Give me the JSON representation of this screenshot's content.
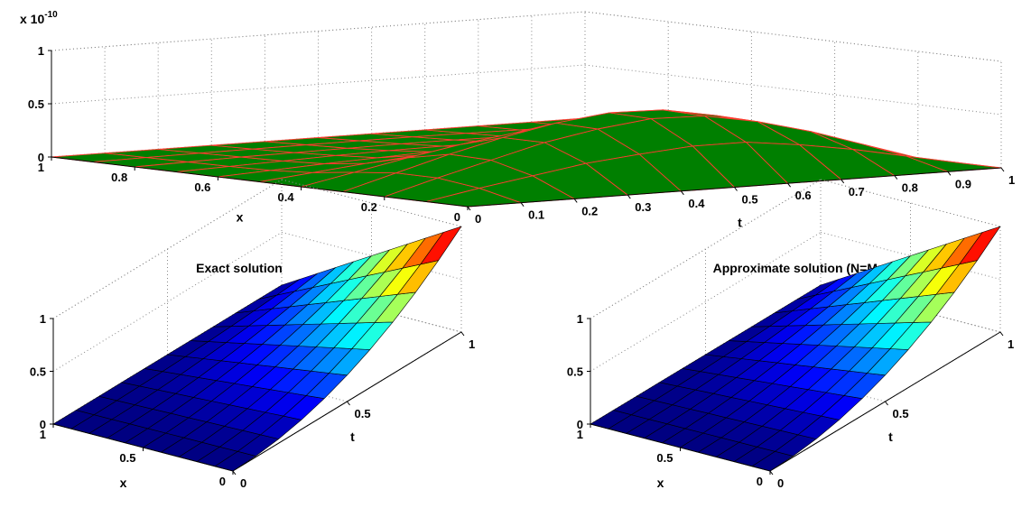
{
  "chart_data": [
    {
      "id": "error",
      "type": "surface",
      "title": "",
      "xlabel": "x",
      "ylabel": "t",
      "zlabel": "",
      "z_exponent_label": "x 10",
      "z_exponent": "-10",
      "z_scale": 1e-10,
      "xlim": [
        0,
        1
      ],
      "ylim": [
        0,
        1
      ],
      "zlim": [
        0,
        1
      ],
      "x_ticks": [
        0,
        0.2,
        0.4,
        0.6,
        0.8,
        1
      ],
      "x_tick_labels": [
        "0",
        "0.2",
        "0.4",
        "0.6",
        "0.8",
        "1"
      ],
      "y_ticks": [
        0,
        0.1,
        0.2,
        0.3,
        0.4,
        0.5,
        0.6,
        0.7,
        0.8,
        0.9,
        1
      ],
      "y_tick_labels": [
        "0",
        "0.1",
        "0.2",
        "0.3",
        "0.4",
        "0.5",
        "0.6",
        "0.7",
        "0.8",
        "0.9",
        "1"
      ],
      "z_ticks": [
        0,
        0.5,
        1
      ],
      "z_tick_labels": [
        "0",
        "0.5",
        "1"
      ],
      "face_color": "#007f00",
      "edge_color": "#ff3b30",
      "colormap": null,
      "grid_x": [
        0,
        0.1,
        0.2,
        0.3,
        0.4,
        0.5,
        0.6,
        0.7,
        0.8,
        0.9,
        1
      ],
      "grid_t": [
        0,
        0.1,
        0.2,
        0.3,
        0.4,
        0.5,
        0.6,
        0.7,
        0.8,
        0.9,
        1
      ],
      "z": [
        [
          0,
          0,
          0,
          0,
          0,
          0,
          0,
          0,
          0,
          0,
          0
        ],
        [
          0,
          0.09,
          0.17,
          0.25,
          0.3,
          0.34,
          0.34,
          0.28,
          0.2,
          0.1,
          0
        ],
        [
          0,
          0.14,
          0.27,
          0.4,
          0.49,
          0.55,
          0.54,
          0.45,
          0.32,
          0.16,
          0
        ],
        [
          0,
          0.14,
          0.28,
          0.4,
          0.5,
          0.56,
          0.55,
          0.46,
          0.33,
          0.16,
          0
        ],
        [
          0,
          0.1,
          0.2,
          0.29,
          0.36,
          0.4,
          0.39,
          0.33,
          0.24,
          0.12,
          0
        ],
        [
          0,
          0.05,
          0.1,
          0.14,
          0.17,
          0.19,
          0.19,
          0.16,
          0.12,
          0.06,
          0
        ],
        [
          0,
          0.025,
          0.05,
          0.07,
          0.09,
          0.1,
          0.1,
          0.08,
          0.06,
          0.03,
          0
        ],
        [
          0,
          0.015,
          0.03,
          0.045,
          0.055,
          0.06,
          0.06,
          0.05,
          0.035,
          0.02,
          0
        ],
        [
          0,
          0.01,
          0.02,
          0.025,
          0.03,
          0.035,
          0.035,
          0.03,
          0.02,
          0.01,
          0
        ],
        [
          0,
          0.005,
          0.01,
          0.012,
          0.015,
          0.017,
          0.017,
          0.014,
          0.01,
          0.005,
          0
        ],
        [
          0,
          0,
          0,
          0,
          0,
          0,
          0,
          0,
          0,
          0,
          0
        ]
      ]
    },
    {
      "id": "exact",
      "type": "surface",
      "title": "Exact solution",
      "xlabel": "x",
      "ylabel": "t",
      "zlabel": "",
      "xlim": [
        0,
        1
      ],
      "ylim": [
        0,
        1
      ],
      "zlim": [
        0,
        1
      ],
      "x_ticks": [
        0,
        0.5,
        1
      ],
      "x_tick_labels": [
        "0",
        "0.5",
        "1"
      ],
      "y_ticks": [
        0,
        0.5,
        1
      ],
      "y_tick_labels": [
        "0",
        "0.5",
        "1"
      ],
      "z_ticks": [
        0,
        0.5,
        1
      ],
      "z_tick_labels": [
        "0",
        "0.5",
        "1"
      ],
      "edge_color": "#000000",
      "colormap": "jet",
      "grid_x": [
        0,
        0.1,
        0.2,
        0.3,
        0.4,
        0.5,
        0.6,
        0.7,
        0.8,
        0.9,
        1
      ],
      "grid_t": [
        0,
        0.1,
        0.2,
        0.3,
        0.4,
        0.5,
        0.6,
        0.7,
        0.8,
        0.9,
        1
      ],
      "z": [
        [
          0,
          0.01,
          0.04,
          0.09,
          0.16,
          0.25,
          0.36,
          0.49,
          0.64,
          0.81,
          1
        ],
        [
          0,
          0.009,
          0.036,
          0.081,
          0.144,
          0.225,
          0.324,
          0.441,
          0.576,
          0.729,
          0.9
        ],
        [
          0,
          0.008,
          0.032,
          0.072,
          0.128,
          0.2,
          0.288,
          0.392,
          0.512,
          0.648,
          0.8
        ],
        [
          0,
          0.007,
          0.028,
          0.063,
          0.112,
          0.175,
          0.252,
          0.343,
          0.448,
          0.567,
          0.7
        ],
        [
          0,
          0.006,
          0.024,
          0.054,
          0.096,
          0.15,
          0.216,
          0.294,
          0.384,
          0.486,
          0.6
        ],
        [
          0,
          0.005,
          0.02,
          0.045,
          0.08,
          0.125,
          0.18,
          0.245,
          0.32,
          0.405,
          0.5
        ],
        [
          0,
          0.004,
          0.016,
          0.036,
          0.064,
          0.1,
          0.144,
          0.196,
          0.256,
          0.324,
          0.4
        ],
        [
          0,
          0.003,
          0.012,
          0.027,
          0.048,
          0.075,
          0.108,
          0.147,
          0.192,
          0.243,
          0.3
        ],
        [
          0,
          0.002,
          0.008,
          0.018,
          0.032,
          0.05,
          0.072,
          0.098,
          0.128,
          0.162,
          0.2
        ],
        [
          0,
          0.001,
          0.004,
          0.009,
          0.016,
          0.025,
          0.036,
          0.049,
          0.064,
          0.081,
          0.1
        ],
        [
          0,
          0,
          0,
          0,
          0,
          0,
          0,
          0,
          0,
          0,
          0
        ]
      ]
    },
    {
      "id": "approx",
      "type": "surface",
      "title": "Approximate solution (N=M=10)",
      "xlabel": "x",
      "ylabel": "t",
      "zlabel": "",
      "xlim": [
        0,
        1
      ],
      "ylim": [
        0,
        1
      ],
      "zlim": [
        0,
        1
      ],
      "x_ticks": [
        0,
        0.5,
        1
      ],
      "x_tick_labels": [
        "0",
        "0.5",
        "1"
      ],
      "y_ticks": [
        0,
        0.5,
        1
      ],
      "y_tick_labels": [
        "0",
        "0.5",
        "1"
      ],
      "z_ticks": [
        0,
        0.5,
        1
      ],
      "z_tick_labels": [
        "0",
        "0.5",
        "1"
      ],
      "edge_color": "#000000",
      "colormap": "jet",
      "grid_x": [
        0,
        0.1,
        0.2,
        0.3,
        0.4,
        0.5,
        0.6,
        0.7,
        0.8,
        0.9,
        1
      ],
      "grid_t": [
        0,
        0.1,
        0.2,
        0.3,
        0.4,
        0.5,
        0.6,
        0.7,
        0.8,
        0.9,
        1
      ],
      "z": [
        [
          0,
          0.01,
          0.04,
          0.09,
          0.16,
          0.25,
          0.36,
          0.49,
          0.64,
          0.81,
          1
        ],
        [
          0,
          0.009,
          0.036,
          0.081,
          0.144,
          0.225,
          0.324,
          0.441,
          0.576,
          0.729,
          0.9
        ],
        [
          0,
          0.008,
          0.032,
          0.072,
          0.128,
          0.2,
          0.288,
          0.392,
          0.512,
          0.648,
          0.8
        ],
        [
          0,
          0.007,
          0.028,
          0.063,
          0.112,
          0.175,
          0.252,
          0.343,
          0.448,
          0.567,
          0.7
        ],
        [
          0,
          0.006,
          0.024,
          0.054,
          0.096,
          0.15,
          0.216,
          0.294,
          0.384,
          0.486,
          0.6
        ],
        [
          0,
          0.005,
          0.02,
          0.045,
          0.08,
          0.125,
          0.18,
          0.245,
          0.32,
          0.405,
          0.5
        ],
        [
          0,
          0.004,
          0.016,
          0.036,
          0.064,
          0.1,
          0.144,
          0.196,
          0.256,
          0.324,
          0.4
        ],
        [
          0,
          0.003,
          0.012,
          0.027,
          0.048,
          0.075,
          0.108,
          0.147,
          0.192,
          0.243,
          0.3
        ],
        [
          0,
          0.002,
          0.008,
          0.018,
          0.032,
          0.05,
          0.072,
          0.098,
          0.128,
          0.162,
          0.2
        ],
        [
          0,
          0.001,
          0.004,
          0.009,
          0.016,
          0.025,
          0.036,
          0.049,
          0.064,
          0.081,
          0.1
        ],
        [
          0,
          0,
          0,
          0,
          0,
          0,
          0,
          0,
          0,
          0,
          0
        ]
      ]
    }
  ]
}
